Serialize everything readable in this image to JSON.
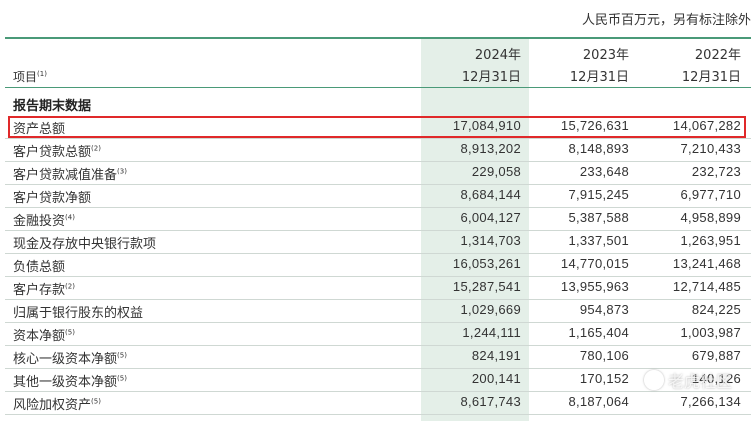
{
  "unit_note": "人民币百万元，另有标注除外",
  "header": {
    "item_label": "项目",
    "item_note": "(1)",
    "columns": [
      {
        "year": "2024年",
        "date": "12月31日"
      },
      {
        "year": "2023年",
        "date": "12月31日"
      },
      {
        "year": "2022年",
        "date": "12月31日"
      }
    ]
  },
  "section_title": "报告期末数据",
  "rows": [
    {
      "label": "资产总额",
      "note": "",
      "values": [
        "17,084,910",
        "15,726,631",
        "14,067,282"
      ],
      "highlighted": true
    },
    {
      "label": "客户贷款总额",
      "note": "(2)",
      "values": [
        "8,913,202",
        "8,148,893",
        "7,210,433"
      ]
    },
    {
      "label": "客户贷款减值准备",
      "note": "(3)",
      "values": [
        "229,058",
        "233,648",
        "232,723"
      ]
    },
    {
      "label": "客户贷款净额",
      "note": "",
      "values": [
        "8,684,144",
        "7,915,245",
        "6,977,710"
      ]
    },
    {
      "label": "金融投资",
      "note": "(4)",
      "values": [
        "6,004,127",
        "5,387,588",
        "4,958,899"
      ]
    },
    {
      "label": "现金及存放中央银行款项",
      "note": "",
      "values": [
        "1,314,703",
        "1,337,501",
        "1,263,951"
      ]
    },
    {
      "label": "负债总额",
      "note": "",
      "values": [
        "16,053,261",
        "14,770,015",
        "13,241,468"
      ]
    },
    {
      "label": "客户存款",
      "note": "(2)",
      "values": [
        "15,287,541",
        "13,955,963",
        "12,714,485"
      ]
    },
    {
      "label": "归属于银行股东的权益",
      "note": "",
      "values": [
        "1,029,669",
        "954,873",
        "824,225"
      ]
    },
    {
      "label": "资本净额",
      "note": "(5)",
      "values": [
        "1,244,111",
        "1,165,404",
        "1,003,987"
      ]
    },
    {
      "label": "核心一级资本净额",
      "note": "(5)",
      "values": [
        "824,191",
        "780,106",
        "679,887"
      ]
    },
    {
      "label": "其他一级资本净额",
      "note": "(5)",
      "values": [
        "200,141",
        "170,152",
        "140,126"
      ]
    },
    {
      "label": "风险加权资产",
      "note": "(5)",
      "values": [
        "8,617,743",
        "8,187,064",
        "7,266,134"
      ]
    }
  ],
  "watermark": "老虎社区",
  "colors": {
    "accent": "#4a9a78",
    "highlight_column": "#e4efe8",
    "red_box": "#e0292a"
  }
}
